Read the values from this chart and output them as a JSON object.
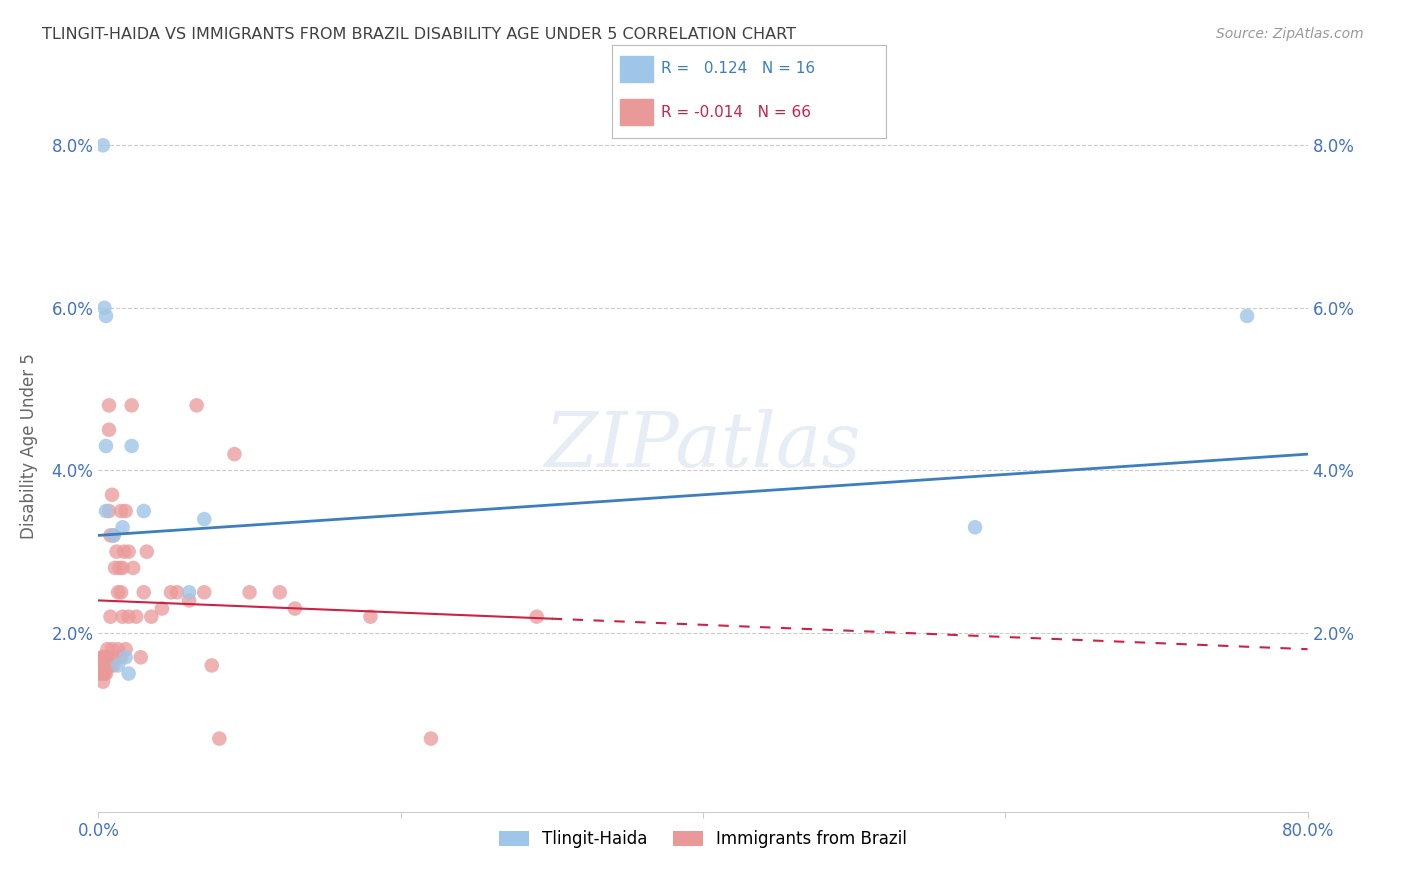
{
  "title": "TLINGIT-HAIDA VS IMMIGRANTS FROM BRAZIL DISABILITY AGE UNDER 5 CORRELATION CHART",
  "source": "Source: ZipAtlas.com",
  "ylabel": "Disability Age Under 5",
  "legend_blue_r_val": "0.124",
  "legend_blue_n_val": "16",
  "legend_pink_r_val": "-0.014",
  "legend_pink_n_val": "66",
  "legend_label_blue": "Tlingit-Haida",
  "legend_label_pink": "Immigrants from Brazil",
  "watermark": "ZIPatlas",
  "xlim": [
    0.0,
    0.8
  ],
  "ylim": [
    -0.002,
    0.088
  ],
  "yticks": [
    0.02,
    0.04,
    0.06,
    0.08
  ],
  "ytick_labels": [
    "2.0%",
    "4.0%",
    "6.0%",
    "8.0%"
  ],
  "xticks": [
    0.0,
    0.2,
    0.4,
    0.6,
    0.8
  ],
  "xtick_labels": [
    "0.0%",
    "",
    "",
    "",
    "80.0%"
  ],
  "blue_points_x": [
    0.003,
    0.004,
    0.005,
    0.005,
    0.005,
    0.01,
    0.013,
    0.016,
    0.018,
    0.02,
    0.022,
    0.03,
    0.06,
    0.07,
    0.58,
    0.76
  ],
  "blue_points_y": [
    0.08,
    0.06,
    0.059,
    0.043,
    0.035,
    0.032,
    0.016,
    0.033,
    0.017,
    0.015,
    0.043,
    0.035,
    0.025,
    0.034,
    0.033,
    0.059
  ],
  "pink_points_x": [
    0.001,
    0.001,
    0.002,
    0.002,
    0.002,
    0.003,
    0.003,
    0.003,
    0.004,
    0.004,
    0.004,
    0.005,
    0.005,
    0.005,
    0.006,
    0.006,
    0.006,
    0.007,
    0.007,
    0.007,
    0.007,
    0.008,
    0.008,
    0.008,
    0.009,
    0.009,
    0.01,
    0.01,
    0.011,
    0.011,
    0.012,
    0.013,
    0.013,
    0.014,
    0.015,
    0.015,
    0.015,
    0.016,
    0.016,
    0.017,
    0.018,
    0.018,
    0.02,
    0.02,
    0.022,
    0.023,
    0.025,
    0.028,
    0.03,
    0.032,
    0.035,
    0.042,
    0.048,
    0.052,
    0.06,
    0.065,
    0.07,
    0.075,
    0.08,
    0.09,
    0.1,
    0.12,
    0.13,
    0.18,
    0.22,
    0.29
  ],
  "pink_points_y": [
    0.016,
    0.015,
    0.017,
    0.016,
    0.015,
    0.017,
    0.015,
    0.014,
    0.017,
    0.016,
    0.015,
    0.017,
    0.016,
    0.015,
    0.018,
    0.017,
    0.016,
    0.048,
    0.045,
    0.035,
    0.016,
    0.032,
    0.022,
    0.016,
    0.037,
    0.018,
    0.032,
    0.016,
    0.028,
    0.017,
    0.03,
    0.025,
    0.018,
    0.028,
    0.035,
    0.025,
    0.017,
    0.028,
    0.022,
    0.03,
    0.035,
    0.018,
    0.03,
    0.022,
    0.048,
    0.028,
    0.022,
    0.017,
    0.025,
    0.03,
    0.022,
    0.023,
    0.025,
    0.025,
    0.024,
    0.048,
    0.025,
    0.016,
    0.007,
    0.042,
    0.025,
    0.025,
    0.023,
    0.022,
    0.007,
    0.022
  ],
  "blue_color": "#9fc5e8",
  "pink_color": "#ea9999",
  "blue_line_color": "#3d7ebf",
  "pink_line_color": "#cc2244",
  "grid_color": "#cccccc",
  "background_color": "#ffffff",
  "title_color": "#404040",
  "axis_color": "#4472c4",
  "ytick_color": "#4472c4",
  "blue_trend_x": [
    0.0,
    0.8
  ],
  "blue_trend_y_start": 0.032,
  "blue_trend_y_end": 0.042,
  "pink_trend_x": [
    0.0,
    0.8
  ],
  "pink_trend_y_start": 0.024,
  "pink_trend_y_end": 0.018
}
